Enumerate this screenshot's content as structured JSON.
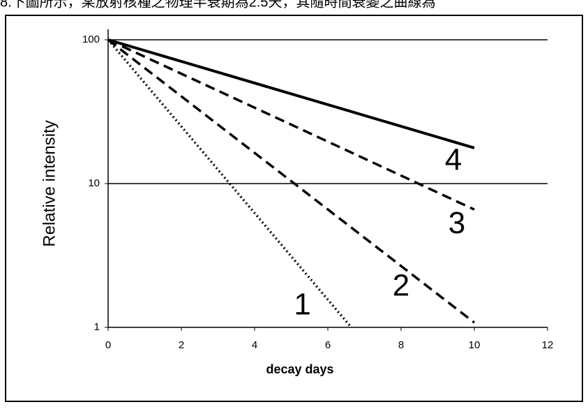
{
  "header": {
    "text": "8.下圖所示，某放射核種之物理半衰期為2.5天，其隨時間衰變之曲線為"
  },
  "chart_data": {
    "type": "line",
    "xlabel": "decay days",
    "ylabel": "Relative intensity",
    "xlim": [
      0,
      12
    ],
    "xticks": [
      0,
      2,
      4,
      6,
      8,
      10,
      12
    ],
    "ylim": [
      1,
      100
    ],
    "yticks": [
      1,
      10,
      100
    ],
    "yscale": "log",
    "grid": true,
    "series": [
      {
        "name": "1",
        "color": "#000000",
        "style": "dotted",
        "x": [
          0,
          6.64
        ],
        "values": [
          100,
          1
        ]
      },
      {
        "name": "2",
        "color": "#000000",
        "style": "dashed",
        "x": [
          0,
          10
        ],
        "values": [
          100,
          1.08
        ]
      },
      {
        "name": "3",
        "color": "#000000",
        "style": "dashed",
        "x": [
          0,
          10
        ],
        "values": [
          100,
          6.6
        ]
      },
      {
        "name": "4",
        "color": "#000000",
        "style": "solid",
        "x": [
          0,
          10
        ],
        "values": [
          100,
          17.7
        ]
      }
    ]
  }
}
